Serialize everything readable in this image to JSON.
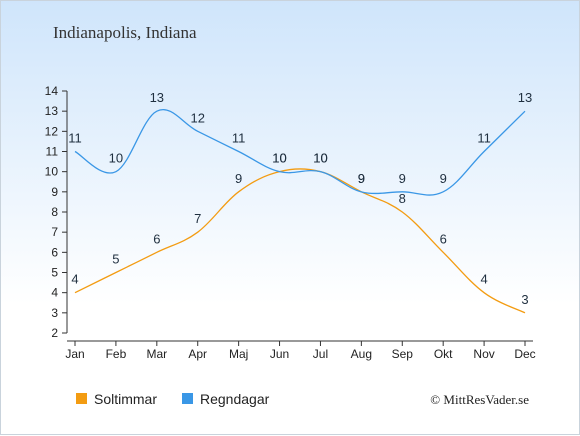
{
  "chart_data": {
    "type": "line",
    "title": "Indianapolis, Indiana",
    "categories": [
      "Jan",
      "Feb",
      "Mar",
      "Apr",
      "Maj",
      "Jun",
      "Jul",
      "Aug",
      "Sep",
      "Okt",
      "Nov",
      "Dec"
    ],
    "series": [
      {
        "name": "Soltimmar",
        "color": "#f39c12",
        "values": [
          4,
          5,
          6,
          7,
          9,
          10,
          10,
          9,
          8,
          6,
          4,
          3
        ]
      },
      {
        "name": "Regndagar",
        "color": "#3a97e6",
        "values": [
          11,
          10,
          13,
          12,
          11,
          10,
          10,
          9,
          9,
          9,
          11,
          13
        ]
      }
    ],
    "yticks": [
      2,
      3,
      4,
      5,
      6,
      7,
      8,
      9,
      10,
      11,
      12,
      13,
      14
    ],
    "ylim": [
      2,
      14
    ],
    "grid": false,
    "legend": "bottom-left",
    "credit": "© MittResVader.se"
  }
}
